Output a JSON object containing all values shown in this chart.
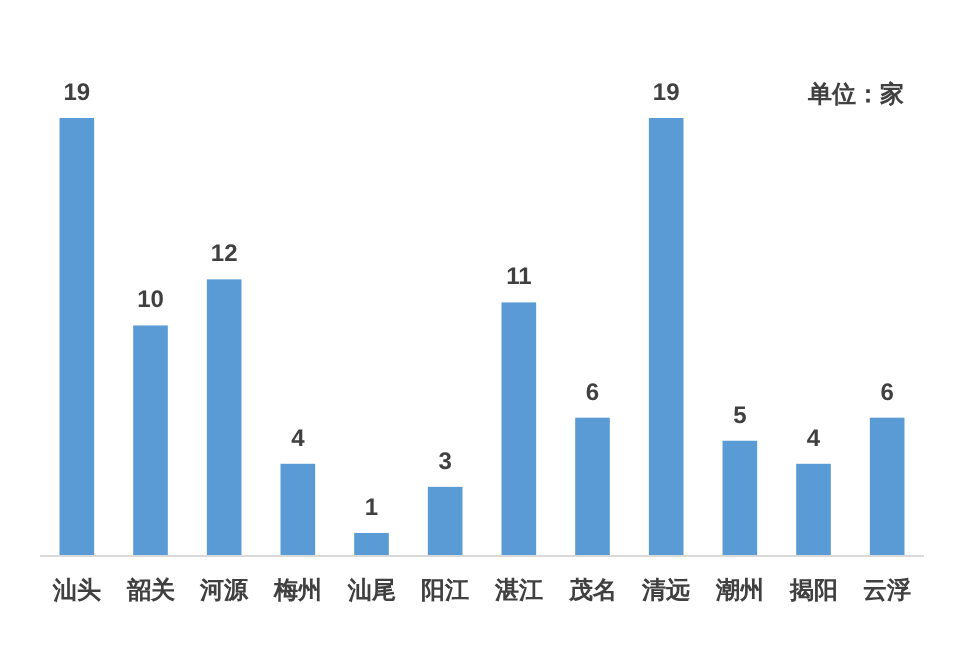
{
  "chart_data": {
    "type": "bar",
    "categories": [
      "汕头",
      "韶关",
      "河源",
      "梅州",
      "汕尾",
      "阳江",
      "湛江",
      "茂名",
      "清远",
      "潮州",
      "揭阳",
      "云浮"
    ],
    "values": [
      19,
      10,
      12,
      4,
      1,
      3,
      11,
      6,
      19,
      5,
      4,
      6
    ],
    "color": "#5b9bd5",
    "data_labels": true,
    "annotations": [
      "单位：家"
    ]
  }
}
